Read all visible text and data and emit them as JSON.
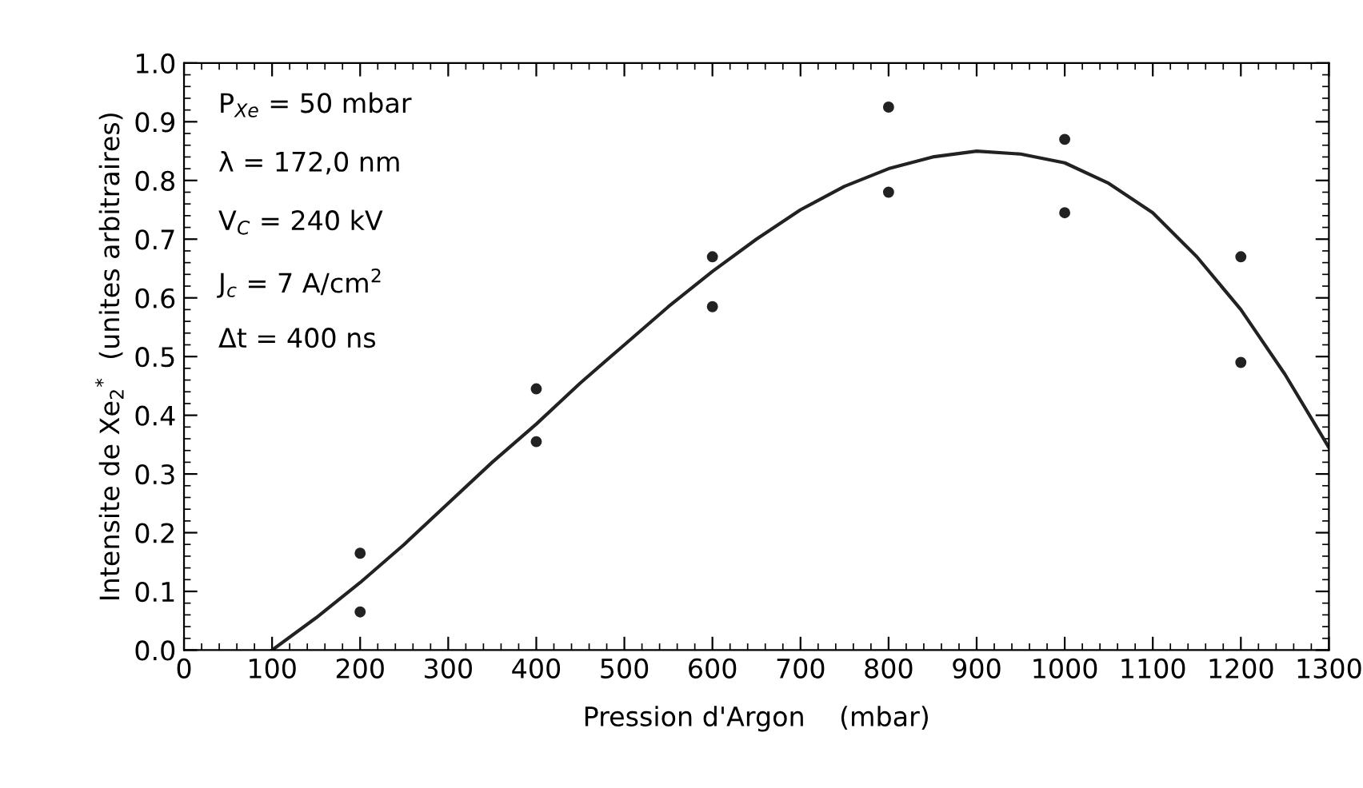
{
  "chart_data": {
    "type": "scatter",
    "xlabel": "Pression d'Argon    (mbar)",
    "ylabel": "Intensite de Xe$_{2}$$^{*}$  (unites arbitraires)",
    "annotations": [
      "P$_{Xe}$ = 50 mbar",
      "λ = 172,0 nm",
      "V$_{C}$ = 240 kV",
      "J$_{c}$ = 7 A/cm$^{2}$",
      "Δt = 400 ns"
    ],
    "series": [
      {
        "color": "#222222",
        "marker": "circle",
        "x": [
          200,
          200,
          400,
          400,
          600,
          600,
          800,
          800,
          1000,
          1000,
          1200,
          1200
        ],
        "values": [
          0.165,
          0.065,
          0.445,
          0.355,
          0.67,
          0.585,
          0.925,
          0.78,
          0.87,
          0.745,
          0.67,
          0.49
        ]
      },
      {
        "type": "line",
        "color": "#222222",
        "marker": "none",
        "line_style": "solid",
        "x": [
          100,
          150,
          200,
          250,
          300,
          350,
          400,
          450,
          500,
          550,
          600,
          650,
          700,
          750,
          800,
          850,
          900,
          950,
          1000,
          1050,
          1100,
          1150,
          1200,
          1250,
          1300
        ],
        "values": [
          0,
          0.055,
          0.115,
          0.18,
          0.25,
          0.32,
          0.385,
          0.455,
          0.52,
          0.585,
          0.645,
          0.7,
          0.75,
          0.79,
          0.82,
          0.84,
          0.85,
          0.845,
          0.83,
          0.795,
          0.745,
          0.67,
          0.58,
          0.47,
          0.345
        ]
      }
    ],
    "xlim": [
      0,
      1300
    ],
    "ylim": [
      0,
      1.0
    ],
    "xticks": [
      0,
      100,
      200,
      300,
      400,
      500,
      600,
      700,
      800,
      900,
      1000,
      1100,
      1200,
      1300
    ],
    "yticks": [
      {
        "value": 0,
        "label": "0.0"
      },
      0.1,
      0.2,
      0.3,
      0.4,
      0.5,
      0.6,
      0.7,
      0.8,
      0.9,
      {
        "value": 1.0,
        "label": "1.0"
      }
    ],
    "grid": false,
    "legend": false
  }
}
